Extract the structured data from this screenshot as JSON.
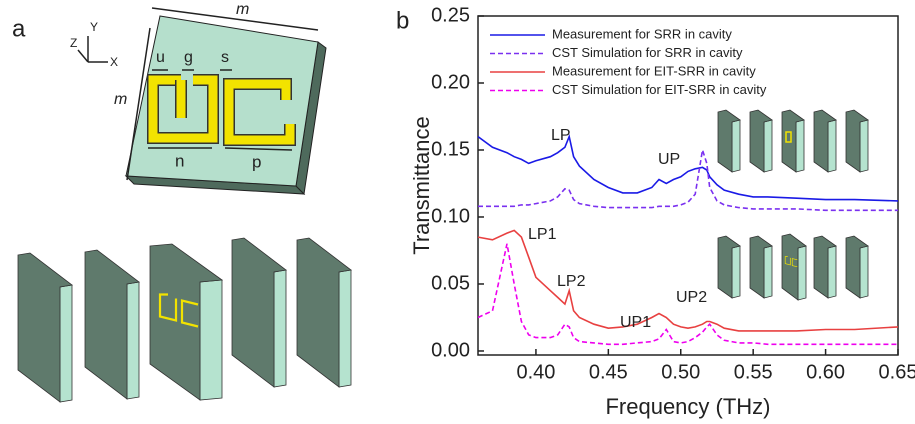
{
  "chart_data": {
    "type": "line",
    "panel_label": "b",
    "xlabel": "Frequency (THz)",
    "ylabel": "Transmittance",
    "x": [
      0.36,
      0.37,
      0.38,
      0.385,
      0.39,
      0.395,
      0.4,
      0.41,
      0.415,
      0.42,
      0.423,
      0.426,
      0.43,
      0.44,
      0.45,
      0.46,
      0.47,
      0.48,
      0.485,
      0.49,
      0.495,
      0.5,
      0.505,
      0.51,
      0.515,
      0.518,
      0.52,
      0.525,
      0.53,
      0.54,
      0.55,
      0.56,
      0.58,
      0.6,
      0.62,
      0.65
    ],
    "series": [
      {
        "name": "Measurement for SRR in cavity",
        "color": "#1a1ae6",
        "dash": false,
        "values": [
          0.16,
          0.152,
          0.148,
          0.145,
          0.143,
          0.14,
          0.142,
          0.145,
          0.148,
          0.152,
          0.16,
          0.145,
          0.138,
          0.128,
          0.122,
          0.118,
          0.118,
          0.122,
          0.128,
          0.125,
          0.128,
          0.13,
          0.134,
          0.136,
          0.137,
          0.135,
          0.13,
          0.124,
          0.12,
          0.117,
          0.115,
          0.115,
          0.114,
          0.113,
          0.113,
          0.112
        ]
      },
      {
        "name": "CST Simulation for SRR in cavity",
        "color": "#7a30f0",
        "dash": true,
        "values": [
          0.108,
          0.108,
          0.108,
          0.108,
          0.109,
          0.109,
          0.11,
          0.112,
          0.115,
          0.121,
          0.12,
          0.113,
          0.11,
          0.108,
          0.107,
          0.107,
          0.107,
          0.107,
          0.108,
          0.108,
          0.108,
          0.109,
          0.111,
          0.117,
          0.15,
          0.14,
          0.122,
          0.112,
          0.109,
          0.107,
          0.106,
          0.106,
          0.106,
          0.105,
          0.105,
          0.105
        ]
      },
      {
        "name": "Measurement for EIT-SRR in cavity",
        "color": "#e84040",
        "dash": false,
        "values": [
          0.085,
          0.083,
          0.088,
          0.09,
          0.085,
          0.07,
          0.055,
          0.045,
          0.04,
          0.035,
          0.045,
          0.03,
          0.025,
          0.02,
          0.017,
          0.018,
          0.02,
          0.025,
          0.028,
          0.025,
          0.02,
          0.018,
          0.017,
          0.018,
          0.02,
          0.022,
          0.022,
          0.02,
          0.017,
          0.015,
          0.015,
          0.015,
          0.015,
          0.016,
          0.016,
          0.018
        ]
      },
      {
        "name": "CST Simulation for EIT-SRR in cavity",
        "color": "#ee00ee",
        "dash": true,
        "values": [
          0.025,
          0.03,
          0.08,
          0.05,
          0.022,
          0.012,
          0.01,
          0.01,
          0.012,
          0.02,
          0.018,
          0.01,
          0.007,
          0.006,
          0.005,
          0.005,
          0.006,
          0.007,
          0.009,
          0.016,
          0.007,
          0.006,
          0.007,
          0.01,
          0.014,
          0.018,
          0.02,
          0.012,
          0.008,
          0.006,
          0.006,
          0.005,
          0.005,
          0.005,
          0.005,
          0.005
        ]
      }
    ],
    "annotations": [
      "LP",
      "UP",
      "LP1",
      "LP2",
      "UP1",
      "UP2"
    ],
    "xlim": [
      0.36,
      0.65
    ],
    "xticks": [
      {
        "value": 0.4,
        "label": "0.40"
      },
      {
        "value": 0.45,
        "label": "0.45"
      },
      {
        "value": 0.5,
        "label": "0.50"
      },
      {
        "value": 0.55,
        "label": "0.55"
      },
      {
        "value": 0.6,
        "label": "0.60"
      },
      {
        "value": 0.65,
        "label": "0.65"
      }
    ],
    "ylim": [
      -0.003,
      0.25
    ],
    "yticks": [
      {
        "value": 0,
        "label": "0.00"
      },
      {
        "value": 0.05,
        "label": "0.05"
      },
      {
        "value": 0.1,
        "label": "0.10"
      },
      {
        "value": 0.15,
        "label": "0.15"
      },
      {
        "value": 0.2,
        "label": "0.20"
      },
      {
        "value": 0.25,
        "label": "0.25"
      }
    ],
    "legend": "upper left",
    "grid": false
  },
  "diagram": {
    "panel_label": "a",
    "axes": [
      "Y",
      "Z",
      "X"
    ],
    "dimensions": [
      "m",
      "m",
      "u",
      "g",
      "s",
      "n",
      "p"
    ]
  }
}
